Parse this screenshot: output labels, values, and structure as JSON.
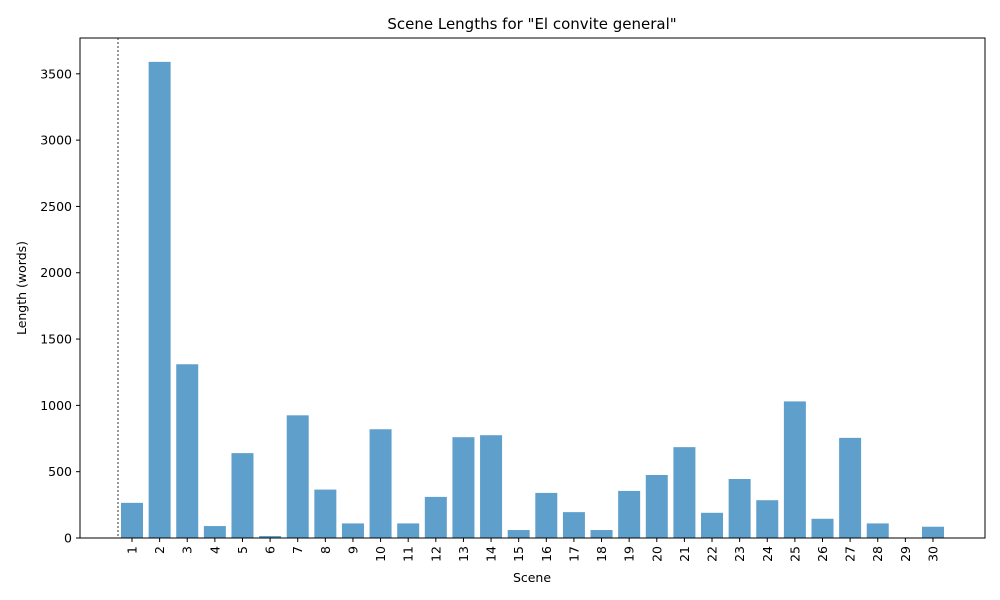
{
  "chart_data": {
    "type": "bar",
    "title": "Scene Lengths for \"El convite general\"",
    "xlabel": "Scene",
    "ylabel": "Length (words)",
    "categories": [
      "1",
      "2",
      "3",
      "4",
      "5",
      "6",
      "7",
      "8",
      "9",
      "10",
      "11",
      "12",
      "13",
      "14",
      "15",
      "16",
      "17",
      "18",
      "19",
      "20",
      "21",
      "22",
      "23",
      "24",
      "25",
      "26",
      "27",
      "28",
      "29",
      "30"
    ],
    "values": [
      265,
      3590,
      1310,
      90,
      640,
      15,
      925,
      365,
      110,
      820,
      110,
      310,
      760,
      775,
      60,
      340,
      195,
      60,
      355,
      475,
      685,
      190,
      445,
      285,
      1030,
      145,
      755,
      110,
      0,
      85
    ],
    "ylim": [
      0,
      3770
    ],
    "yticks": [
      0,
      500,
      1000,
      1500,
      2000,
      2500,
      3000,
      3500
    ],
    "ytick_labels": [
      "0",
      "500",
      "1000",
      "1500",
      "2000",
      "2500",
      "3000",
      "3500"
    ],
    "bar_color": "#5f9fcc",
    "vline_color": "#000000",
    "vline_style": "dotted",
    "grid": false,
    "legend": "none"
  }
}
